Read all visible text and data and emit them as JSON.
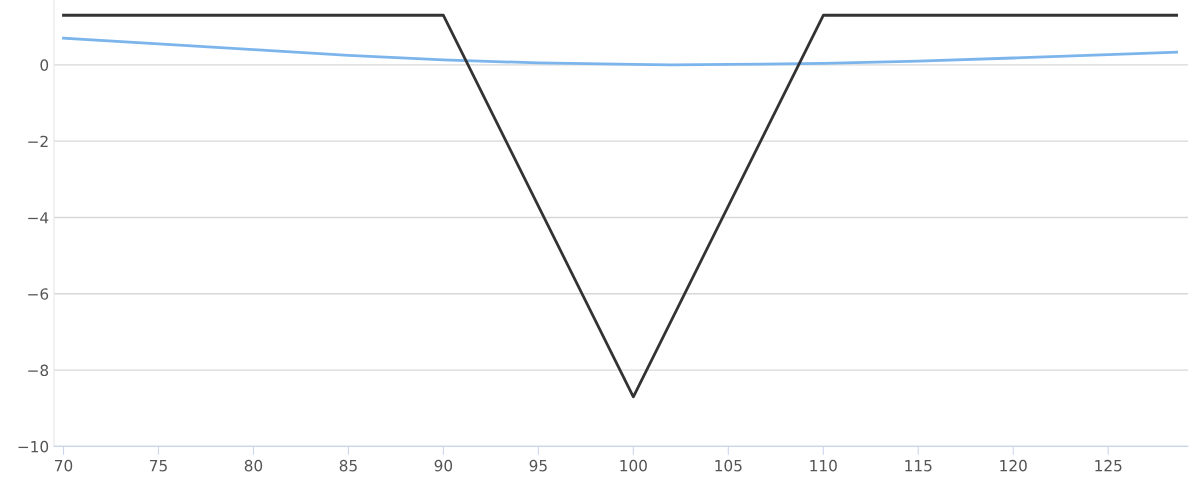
{
  "chart_data": {
    "type": "line",
    "series": [
      {
        "color": "#333333",
        "x": [
          70,
          90,
          100,
          110,
          128.6
        ],
        "values": [
          1.3,
          1.3,
          -8.7,
          1.3,
          1.3
        ]
      },
      {
        "color": "#7cb5ec",
        "x": [
          70,
          75,
          80,
          85,
          90,
          95,
          100,
          102,
          105,
          110,
          115,
          120,
          125,
          128.6
        ],
        "values": [
          0.7,
          0.55,
          0.4,
          0.25,
          0.13,
          0.05,
          0.01,
          0.0,
          0.01,
          0.04,
          0.1,
          0.18,
          0.27,
          0.33
        ]
      }
    ],
    "xlim": [
      69.5,
      129.2
    ],
    "xticks": [
      70,
      75,
      80,
      85,
      90,
      95,
      100,
      105,
      110,
      115,
      120,
      125
    ],
    "ylim": [
      -10,
      1.7
    ],
    "yticks": [
      {
        "value": -10,
        "label": "−10"
      },
      {
        "value": -8,
        "label": "−8"
      },
      {
        "value": -6,
        "label": "−6"
      },
      {
        "value": -4,
        "label": "−4"
      },
      {
        "value": -2,
        "label": "−2"
      },
      0
    ],
    "grid": "y",
    "marker": "none",
    "line_style": "solid"
  }
}
